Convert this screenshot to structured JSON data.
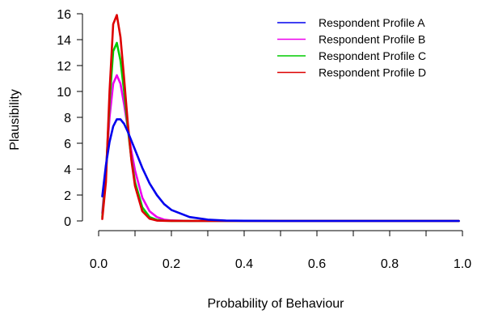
{
  "chart_data": {
    "type": "line",
    "title": "",
    "xlabel": "Probability of Behaviour",
    "ylabel": "Plausibility",
    "xlim": [
      0,
      1
    ],
    "ylim": [
      0,
      16
    ],
    "xticks": [
      0.0,
      0.2,
      0.4,
      0.6,
      0.8,
      1.0
    ],
    "xtick_labels": [
      "0.0",
      "0.2",
      "0.4",
      "0.6",
      "0.8",
      "1.0"
    ],
    "yticks": [
      0,
      2,
      4,
      6,
      8,
      10,
      12,
      14,
      16
    ],
    "ytick_labels": [
      "0",
      "2",
      "4",
      "6",
      "8",
      "10",
      "12",
      "14",
      "16"
    ],
    "grid": false,
    "legend_position": "top-right",
    "x": [
      0.01,
      0.02,
      0.03,
      0.04,
      0.05,
      0.06,
      0.07,
      0.08,
      0.09,
      0.1,
      0.12,
      0.14,
      0.16,
      0.18,
      0.2,
      0.25,
      0.3,
      0.35,
      0.4,
      0.5,
      0.6,
      0.7,
      0.8,
      0.9,
      0.99
    ],
    "series": [
      {
        "name": "Respondent Profile A",
        "color": "#0000ee",
        "values": [
          1.9,
          4.3,
          6.1,
          7.3,
          7.85,
          7.85,
          7.5,
          6.9,
          6.2,
          5.5,
          4.1,
          2.9,
          2.0,
          1.3,
          0.85,
          0.3,
          0.1,
          0.03,
          0.01,
          0,
          0,
          0,
          0,
          0,
          0
        ]
      },
      {
        "name": "Respondent Profile B",
        "color": "#ee00ee",
        "values": [
          0.6,
          4.0,
          8.0,
          10.6,
          11.25,
          10.6,
          9.0,
          7.2,
          5.4,
          3.9,
          1.8,
          0.75,
          0.3,
          0.1,
          0.04,
          0,
          0,
          0,
          0,
          0,
          0,
          0,
          0,
          0,
          0
        ]
      },
      {
        "name": "Respondent Profile C",
        "color": "#00cc00",
        "values": [
          0.3,
          3.5,
          9.2,
          13.1,
          13.75,
          12.4,
          10.0,
          7.2,
          4.8,
          3.0,
          1.05,
          0.3,
          0.08,
          0.02,
          0,
          0,
          0,
          0,
          0,
          0,
          0,
          0,
          0,
          0,
          0
        ]
      },
      {
        "name": "Respondent Profile D",
        "color": "#dd0000",
        "values": [
          0.15,
          3.0,
          10.0,
          15.2,
          15.9,
          14.2,
          11.0,
          7.6,
          4.7,
          2.7,
          0.75,
          0.17,
          0.03,
          0.01,
          0,
          0,
          0,
          0,
          0,
          0,
          0,
          0,
          0,
          0,
          0
        ]
      }
    ]
  }
}
